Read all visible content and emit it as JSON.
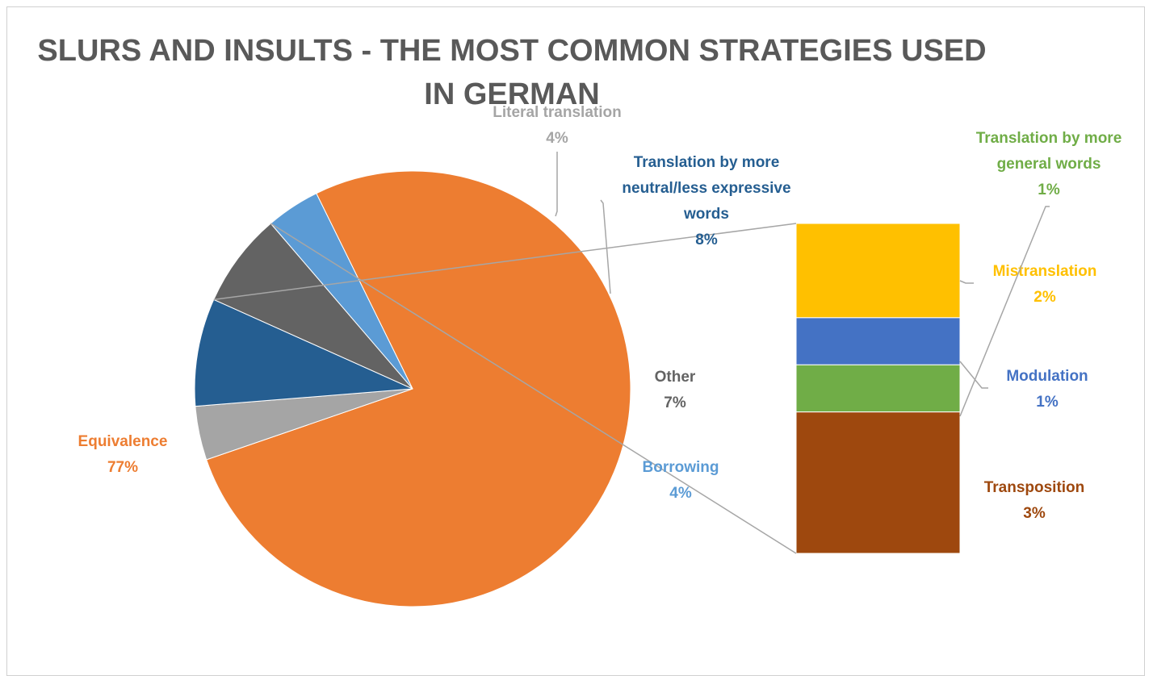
{
  "chart_data": {
    "type": "bar-of-pie",
    "title_lines": [
      "SLURS AND INSULTS - THE MOST COMMON STRATEGIES USED",
      "IN GERMAN"
    ],
    "pie": [
      {
        "name": "Equivalence",
        "value": 77,
        "label": "77%",
        "color": "#ed7d31"
      },
      {
        "name": "Literal translation",
        "value": 4,
        "label": "4%",
        "color": "#a5a5a5"
      },
      {
        "name": "Translation by more neutral/less expressive words",
        "value": 8,
        "label": "8%",
        "color": "#255e91"
      },
      {
        "name": "Other",
        "value": 7,
        "label": "7%",
        "color": "#636363"
      },
      {
        "name": "Borrowing",
        "value": 4,
        "label": "4%",
        "color": "#5b9bd5"
      }
    ],
    "other_breakdown": [
      {
        "name": "Mistranslation",
        "value": 2,
        "label": "2%",
        "color": "#ffc000"
      },
      {
        "name": "Modulation",
        "value": 1,
        "label": "1%",
        "color": "#4472c4"
      },
      {
        "name": "Translation by more general words",
        "value": 1,
        "label": "1%",
        "color": "#70ad47"
      },
      {
        "name": "Transposition",
        "value": 3,
        "label": "3%",
        "color": "#9e480e"
      }
    ],
    "label_text": {
      "equivalence": [
        "Equivalence"
      ],
      "literal": [
        "Literal translation"
      ],
      "neutral": [
        "Translation by more",
        "neutral/less expressive",
        "words"
      ],
      "other": [
        "Other"
      ],
      "borrowing": [
        "Borrowing"
      ],
      "mistranslation": [
        "Mistranslation"
      ],
      "modulation": [
        "Modulation"
      ],
      "general": [
        "Translation by more",
        "general words"
      ],
      "transposition": [
        "Transposition"
      ]
    },
    "leader_color": "#a6a6a6"
  }
}
